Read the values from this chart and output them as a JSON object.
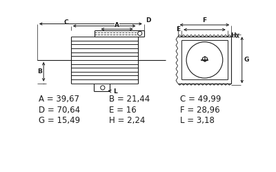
{
  "bg_color": "#ffffff",
  "text_color": "#1a1a1a",
  "line_color": "#1a1a1a",
  "param_rows": [
    [
      [
        "A",
        "39,67"
      ],
      [
        "B",
        "21,44"
      ],
      [
        "C",
        "49,99"
      ]
    ],
    [
      [
        "D",
        "70,64"
      ],
      [
        "E",
        "16"
      ],
      [
        "F",
        "28,96"
      ]
    ],
    [
      [
        "G",
        "15,49"
      ],
      [
        "H",
        "2,24"
      ],
      [
        "L",
        "3,18"
      ]
    ]
  ],
  "param_font_size": 8.5
}
